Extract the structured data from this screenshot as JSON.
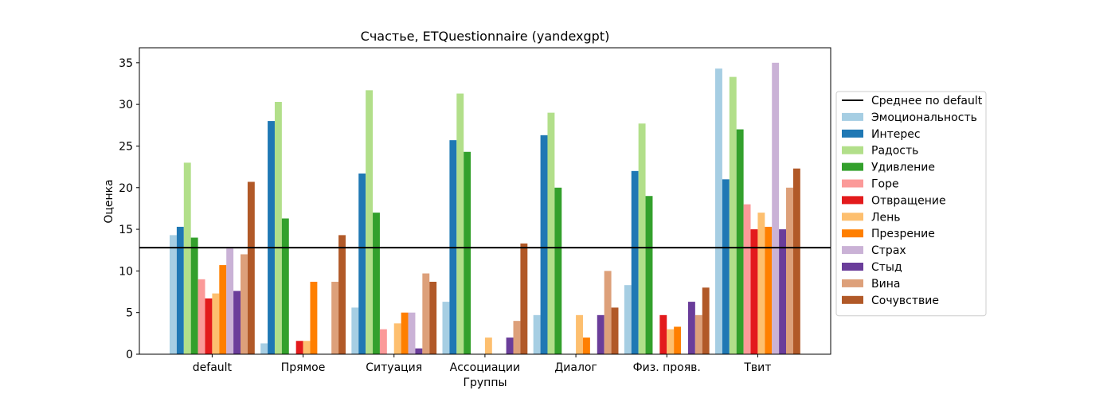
{
  "chart_data": {
    "type": "bar",
    "title": "Счастье, ETQuestionnaire (yandexgpt)",
    "xlabel": "Группы",
    "ylabel": "Оценка",
    "ylim": [
      0,
      36.8
    ],
    "yticks": [
      0,
      5,
      10,
      15,
      20,
      25,
      30,
      35
    ],
    "grid": false,
    "legend_position": "center-right-outside",
    "categories": [
      "default",
      "Прямое",
      "Ситуация",
      "Ассоциации",
      "Диалог",
      "Физ. прояв.",
      "Твит"
    ],
    "reference_line": {
      "name": "Среднее по default",
      "value": 12.8,
      "color": "#000000"
    },
    "series": [
      {
        "name": "Эмоциональность",
        "color": "#a6cee3",
        "values": [
          14.3,
          1.3,
          5.6,
          6.3,
          4.7,
          8.3,
          34.3
        ]
      },
      {
        "name": "Интерес",
        "color": "#1f78b4",
        "values": [
          15.3,
          28.0,
          21.7,
          25.7,
          26.3,
          22.0,
          21.0
        ]
      },
      {
        "name": "Радость",
        "color": "#b2df8a",
        "values": [
          23.0,
          30.3,
          31.7,
          31.3,
          29.0,
          27.7,
          33.3
        ]
      },
      {
        "name": "Удивление",
        "color": "#33a02c",
        "values": [
          14.0,
          16.3,
          17.0,
          24.3,
          20.0,
          19.0,
          27.0
        ]
      },
      {
        "name": "Горе",
        "color": "#fb9a99",
        "values": [
          9.0,
          0,
          3.0,
          0,
          0,
          0,
          18.0
        ]
      },
      {
        "name": "Отвращение",
        "color": "#e31a1c",
        "values": [
          6.7,
          1.6,
          0,
          0,
          0,
          4.7,
          15.0
        ]
      },
      {
        "name": "Лень",
        "color": "#fdbf6f",
        "values": [
          7.3,
          1.6,
          3.7,
          2.0,
          4.7,
          3.0,
          17.0
        ]
      },
      {
        "name": "Презрение",
        "color": "#ff7f00",
        "values": [
          10.7,
          8.7,
          5.0,
          0,
          2.0,
          3.3,
          15.3
        ]
      },
      {
        "name": "Страх",
        "color": "#cab2d6",
        "values": [
          12.7,
          0,
          5.0,
          0,
          0,
          0,
          35.0
        ]
      },
      {
        "name": "Стыд",
        "color": "#6a3d9a",
        "values": [
          7.6,
          0,
          0.7,
          2.0,
          4.7,
          6.3,
          15.0
        ]
      },
      {
        "name": "Вина",
        "color": "#dda07a",
        "values": [
          12.0,
          8.7,
          9.7,
          4.0,
          10.0,
          4.7,
          20.0
        ]
      },
      {
        "name": "Сочувствие",
        "color": "#b15928",
        "values": [
          20.7,
          14.3,
          8.7,
          13.3,
          5.6,
          8.0,
          22.3
        ]
      }
    ]
  }
}
